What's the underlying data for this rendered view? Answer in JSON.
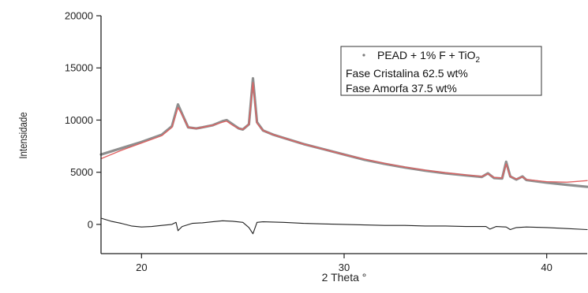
{
  "chart_data": {
    "type": "line",
    "xlabel": "2 Theta °",
    "ylabel": "Intensidade",
    "xlim": [
      18,
      42
    ],
    "ylim": [
      -2800,
      20000
    ],
    "x_ticks": [
      20,
      30,
      40
    ],
    "y_ticks": [
      0,
      5000,
      10000,
      15000,
      20000
    ],
    "grid": false,
    "legend_position": "top-right",
    "legend": {
      "series_label": "PEAD + 1% F + TiO",
      "series_label_sub": "2",
      "lines": [
        "Fase Cristalina 62.5 wt%",
        "Fase Amorfa 37.5 wt%"
      ]
    },
    "series": [
      {
        "name": "PEAD + 1% F + TiO2",
        "role": "data",
        "color": "#7a7a7a",
        "x": [
          18.0,
          19.0,
          20.0,
          21.0,
          21.5,
          21.8,
          22.0,
          22.3,
          22.7,
          23.0,
          23.5,
          24.0,
          24.2,
          24.5,
          24.8,
          25.0,
          25.3,
          25.5,
          25.7,
          26.0,
          26.5,
          27.0,
          28.0,
          29.0,
          30.0,
          31.0,
          32.0,
          33.0,
          34.0,
          35.0,
          36.0,
          36.8,
          37.1,
          37.4,
          37.8,
          38.0,
          38.2,
          38.5,
          38.8,
          39.0,
          40.0,
          41.0,
          42.0
        ],
        "y": [
          6700,
          7300,
          7900,
          8600,
          9400,
          11500,
          10600,
          9300,
          9200,
          9300,
          9500,
          9900,
          10000,
          9600,
          9200,
          9100,
          9600,
          14000,
          9800,
          9000,
          8600,
          8300,
          7700,
          7200,
          6700,
          6200,
          5800,
          5450,
          5150,
          4900,
          4700,
          4550,
          4900,
          4450,
          4400,
          6000,
          4600,
          4300,
          4600,
          4250,
          4000,
          3800,
          3600
        ]
      },
      {
        "name": "Fit",
        "role": "fit",
        "color": "#e06060",
        "x": [
          18.0,
          19.0,
          20.0,
          21.0,
          21.5,
          21.8,
          22.0,
          22.3,
          22.7,
          23.0,
          23.5,
          24.0,
          24.2,
          24.5,
          24.8,
          25.0,
          25.3,
          25.5,
          25.7,
          26.0,
          26.5,
          27.0,
          28.0,
          29.0,
          30.0,
          31.0,
          32.0,
          33.0,
          34.0,
          35.0,
          36.0,
          36.8,
          37.1,
          37.4,
          37.8,
          38.0,
          38.2,
          38.5,
          38.8,
          39.0,
          40.0,
          41.0,
          42.0
        ],
        "y": [
          6300,
          7100,
          7800,
          8500,
          9300,
          11200,
          10500,
          9300,
          9200,
          9300,
          9500,
          9800,
          9900,
          9500,
          9200,
          9100,
          9600,
          13600,
          9700,
          9000,
          8600,
          8300,
          7700,
          7200,
          6700,
          6250,
          5850,
          5500,
          5200,
          4950,
          4750,
          4600,
          4850,
          4500,
          4450,
          5800,
          4600,
          4350,
          4550,
          4300,
          4100,
          4050,
          4200
        ]
      },
      {
        "name": "Residual",
        "role": "residual",
        "color": "#222222",
        "x": [
          18.0,
          18.5,
          19.0,
          19.5,
          20.0,
          20.5,
          21.0,
          21.5,
          21.7,
          21.8,
          22.0,
          22.5,
          23.0,
          23.5,
          24.0,
          24.5,
          25.0,
          25.3,
          25.5,
          25.7,
          26.0,
          27.0,
          28.0,
          29.0,
          30.0,
          31.0,
          32.0,
          33.0,
          34.0,
          35.0,
          36.0,
          37.0,
          37.2,
          37.5,
          38.0,
          38.2,
          38.5,
          39.0,
          40.0,
          41.0,
          42.0
        ],
        "y": [
          600,
          300,
          100,
          -150,
          -250,
          -200,
          -100,
          0,
          200,
          -600,
          -200,
          100,
          150,
          250,
          350,
          300,
          200,
          -300,
          -900,
          200,
          250,
          200,
          100,
          50,
          0,
          -50,
          -100,
          -100,
          -150,
          -150,
          -200,
          -200,
          -450,
          -200,
          -250,
          -500,
          -300,
          -250,
          -300,
          -400,
          -500
        ]
      }
    ]
  }
}
